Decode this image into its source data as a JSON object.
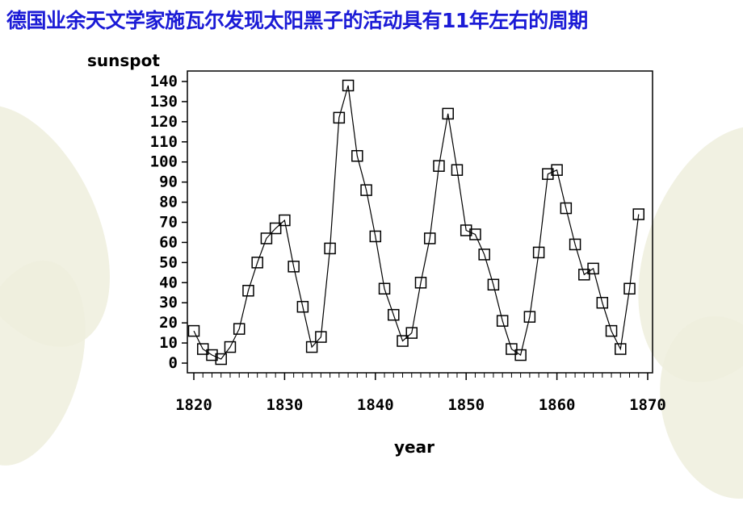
{
  "slide": {
    "title": "德国业余天文学家施瓦尔发现太阳黑子的活动具有11年左右的周期"
  },
  "colors": {
    "title": "#1b1bd6",
    "line": "#000000",
    "background_accent": "#efeedd"
  },
  "chart_data": {
    "type": "line",
    "ylabel": "sunspot",
    "xlabel": "year",
    "xlim": [
      1820,
      1870
    ],
    "ylim": [
      0,
      140
    ],
    "xticks": [
      1820,
      1830,
      1840,
      1850,
      1860,
      1870
    ],
    "yticks": [
      0,
      10,
      20,
      30,
      40,
      50,
      60,
      70,
      80,
      90,
      100,
      110,
      120,
      130,
      140
    ],
    "marker": "square",
    "grid": false,
    "series": [
      {
        "x": [
          1820,
          1821,
          1822,
          1823,
          1824,
          1825,
          1826,
          1827,
          1828,
          1829,
          1830,
          1831,
          1832,
          1833,
          1834,
          1835,
          1836,
          1837,
          1838,
          1839,
          1840,
          1841,
          1842,
          1843,
          1844,
          1845,
          1846,
          1847,
          1848,
          1849,
          1850,
          1851,
          1852,
          1853,
          1854,
          1855,
          1856,
          1857,
          1858,
          1859,
          1860,
          1861,
          1862,
          1863,
          1864,
          1865,
          1866,
          1867,
          1868,
          1869
        ],
        "values": [
          16,
          7,
          4,
          2,
          8,
          17,
          36,
          50,
          62,
          67,
          71,
          48,
          28,
          8,
          13,
          57,
          122,
          138,
          103,
          86,
          63,
          37,
          24,
          11,
          15,
          40,
          62,
          98,
          124,
          96,
          66,
          64,
          54,
          39,
          21,
          7,
          4,
          23,
          55,
          94,
          96,
          77,
          59,
          44,
          47,
          30,
          16,
          7,
          37,
          74
        ]
      }
    ]
  }
}
